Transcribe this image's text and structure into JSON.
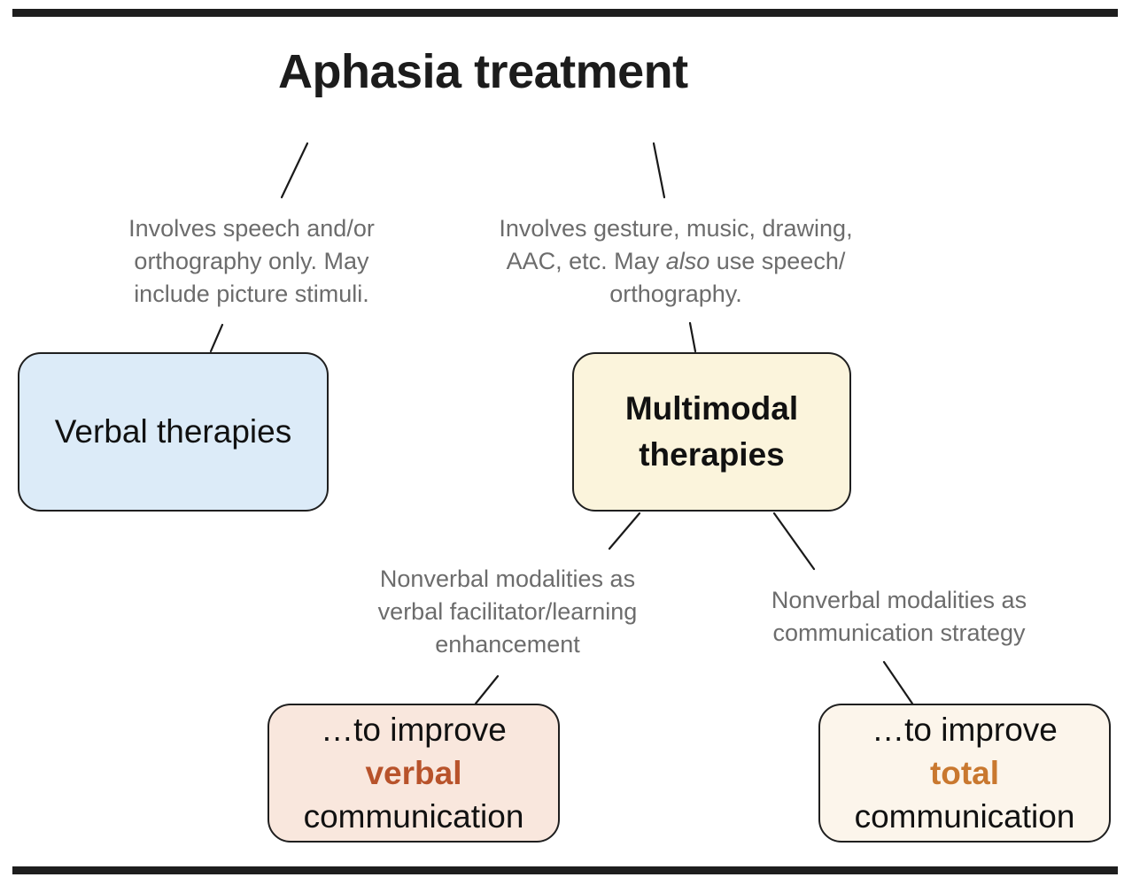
{
  "title": "Aphasia treatment",
  "notes": {
    "verbal": [
      "Involves speech and/or",
      "orthography only. May",
      "include picture stimuli."
    ],
    "multimodal": {
      "line1": "Involves gesture, music, drawing,",
      "line2_before": "AAC, etc. May ",
      "line2_emphasis": "also",
      "line2_after": " use speech/",
      "line3": "orthography."
    },
    "facilitator": [
      "Nonverbal modalities as",
      "verbal facilitator/learning",
      "enhancement"
    ],
    "strategy": [
      "Nonverbal modalities as",
      "communication strategy"
    ]
  },
  "boxes": {
    "verbal_therapies": "Verbal therapies",
    "multimodal_therapies": [
      "Multimodal",
      "therapies"
    ],
    "improve_verbal": {
      "line1": "…to improve",
      "accent": "verbal",
      "line3": "communication"
    },
    "improve_total": {
      "line1": "…to improve",
      "accent": "total",
      "line3": "communication"
    }
  },
  "colors": {
    "verbal_box_fill": "#dcebf8",
    "multimodal_box_fill": "#fbf4dc",
    "improve_verbal_fill": "#f9e7dd",
    "improve_total_fill": "#fcf5eb",
    "verbal_accent": "#b8532b",
    "total_accent": "#c9782f",
    "note_text": "#6c6c6c"
  }
}
